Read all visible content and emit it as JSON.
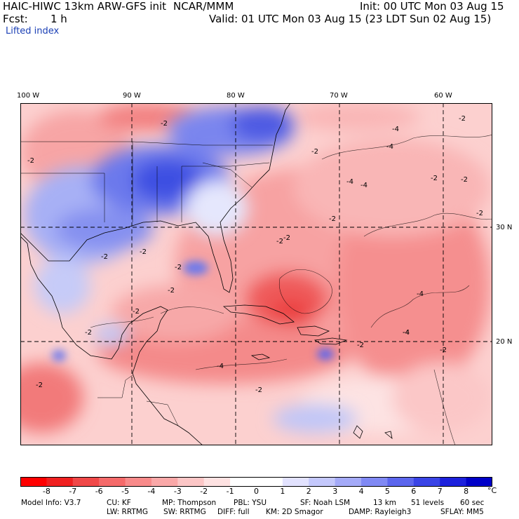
{
  "header": {
    "model": "HAIC-HIWC 13km ARW-GFS init",
    "org": "NCAR/MMM",
    "init": "Init: 00 UTC Mon 03 Aug 15",
    "fcst_label": "Fcst:",
    "fcst_value": "1 h",
    "valid": "Valid: 01 UTC Mon 03 Aug 15 (23 LDT Sun 02 Aug 15)",
    "field": "Lifted index"
  },
  "map": {
    "lon_labels": [
      "100 W",
      "90 W",
      "80 W",
      "70 W",
      "60 W"
    ],
    "lat_labels": [
      "30 N",
      "20 N"
    ],
    "contour_labels": [
      "-2",
      "-4"
    ],
    "colors": {
      "negative": "#e8333a",
      "positive": "#2f46e0",
      "neutral": "#ffffff",
      "grid": "#000000"
    }
  },
  "colorbar": {
    "ticks": [
      "-8",
      "-7",
      "-6",
      "-5",
      "-4",
      "-3",
      "-2",
      "-1",
      "0",
      "1",
      "2",
      "3",
      "4",
      "5",
      "6",
      "7",
      "8"
    ],
    "unit": "°C",
    "colors": [
      "#ff0000",
      "#f02020",
      "#f04848",
      "#f56a6a",
      "#f88a8a",
      "#faa8a8",
      "#fcc6c6",
      "#fee2e2",
      "#ffffff",
      "#ffffff",
      "#e2e2fe",
      "#c4c8fc",
      "#a4aaf8",
      "#8089f4",
      "#5c66ee",
      "#3a44e6",
      "#1c20dc",
      "#0000c8"
    ]
  },
  "footer": {
    "line1": {
      "model_info": "Model Info: V3.7",
      "cu": "CU: KF",
      "mp": "MP: Thompson",
      "pbl": "PBL: YSU",
      "sf": "SF: Noah LSM",
      "res": "13 km",
      "levels": "51 levels",
      "dt": "60 sec"
    },
    "line2": {
      "lw": "LW: RRTMG",
      "sw": "SW: RRTMG",
      "diff": "DIFF: full",
      "km": "KM: 2D Smagor",
      "damp": "DAMP: Rayleigh3",
      "sflay": "SFLAY: MM5"
    }
  }
}
